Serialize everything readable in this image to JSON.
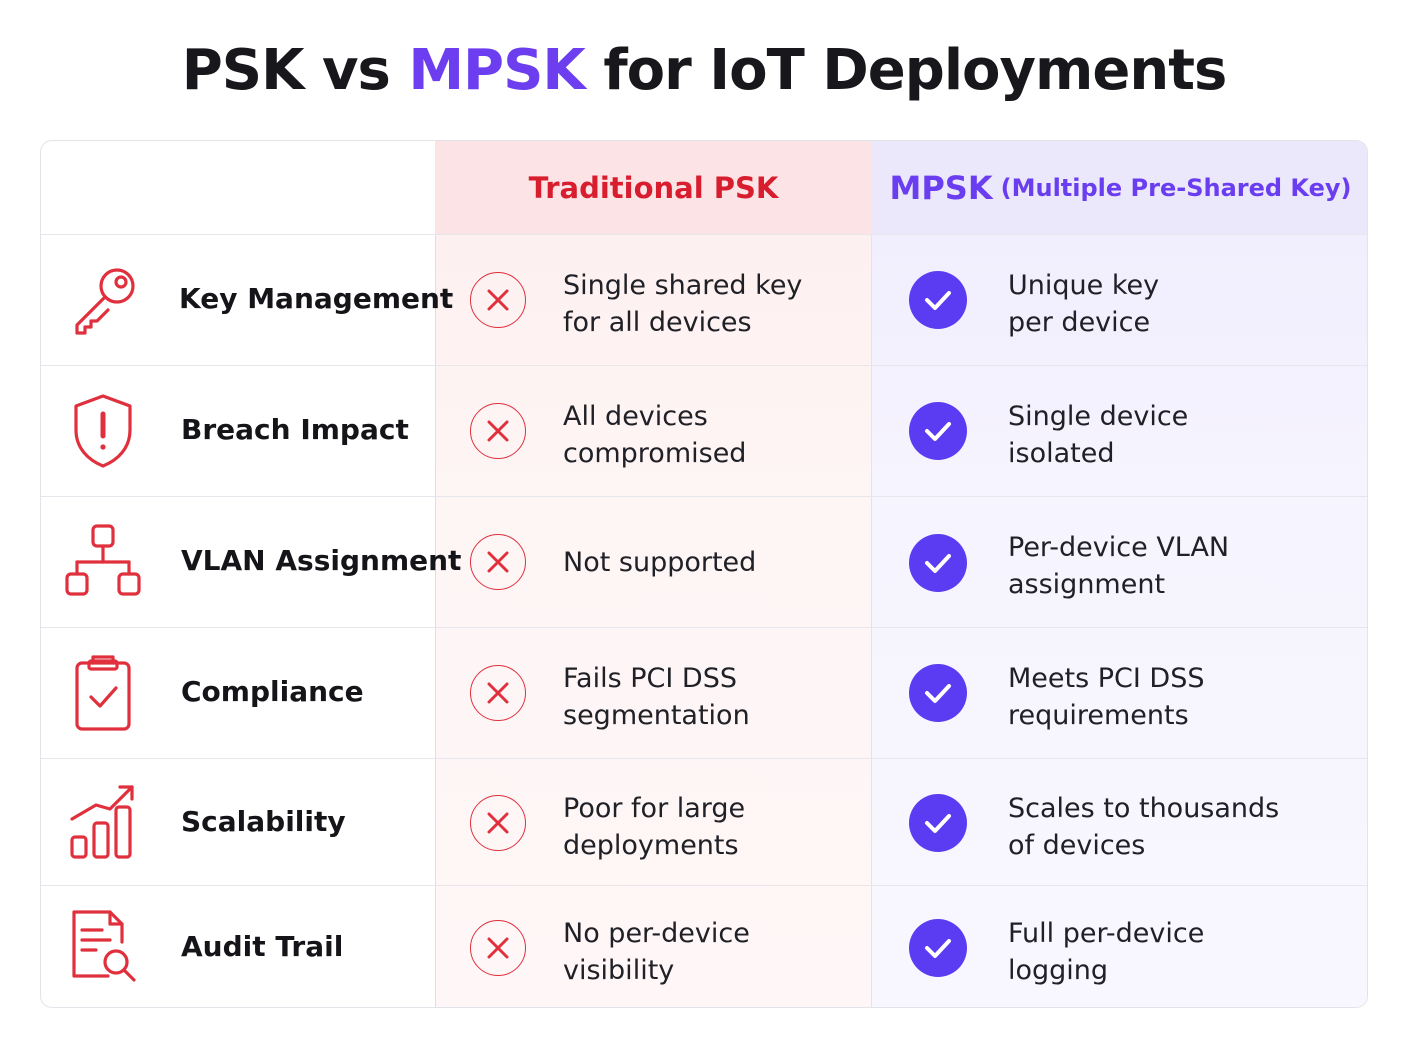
{
  "title": {
    "part1": "PSK",
    "part2": "vs",
    "accent": "MPSK",
    "part3": "for IoT Deployments"
  },
  "columns": {
    "psk": "Traditional PSK",
    "mpsk_main": "MPSK",
    "mpsk_sub": "(Multiple Pre-Shared Key)"
  },
  "colors": {
    "accent_purple": "#6d3ef0",
    "psk_red": "#d81e2e",
    "check_fill": "#5b3cf2"
  },
  "rows": [
    {
      "icon": "key-icon",
      "label": "Key Management",
      "psk_status": "x",
      "psk_line1": "Single shared key",
      "psk_line2": "for all devices",
      "mpsk_status": "check",
      "mpsk_line1": "Unique key",
      "mpsk_line2": "per device"
    },
    {
      "icon": "shield-alert-icon",
      "label": "Breach Impact",
      "psk_status": "x",
      "psk_line1": "All devices",
      "psk_line2": "compromised",
      "mpsk_status": "check",
      "mpsk_line1": "Single device",
      "mpsk_line2": "isolated"
    },
    {
      "icon": "network-hierarchy-icon",
      "label": "VLAN Assignment",
      "psk_status": "x",
      "psk_line1": "Not supported",
      "psk_line2": "",
      "mpsk_status": "check",
      "mpsk_line1": "Per-device VLAN",
      "mpsk_line2": "assignment"
    },
    {
      "icon": "clipboard-check-icon",
      "label": "Compliance",
      "psk_status": "x",
      "psk_line1": "Fails PCI DSS",
      "psk_line2": "segmentation",
      "mpsk_status": "check",
      "mpsk_line1": "Meets PCI DSS",
      "mpsk_line2": "requirements"
    },
    {
      "icon": "growth-chart-icon",
      "label": "Scalability",
      "psk_status": "x",
      "psk_line1": "Poor for large",
      "psk_line2": "deployments",
      "mpsk_status": "check",
      "mpsk_line1": "Scales to thousands",
      "mpsk_line2": "of devices"
    },
    {
      "icon": "document-search-icon",
      "label": "Audit Trail",
      "psk_status": "x",
      "psk_line1": "No per-device",
      "psk_line2": "visibility",
      "mpsk_status": "check",
      "mpsk_line1": "Full per-device",
      "mpsk_line2": "logging"
    }
  ]
}
